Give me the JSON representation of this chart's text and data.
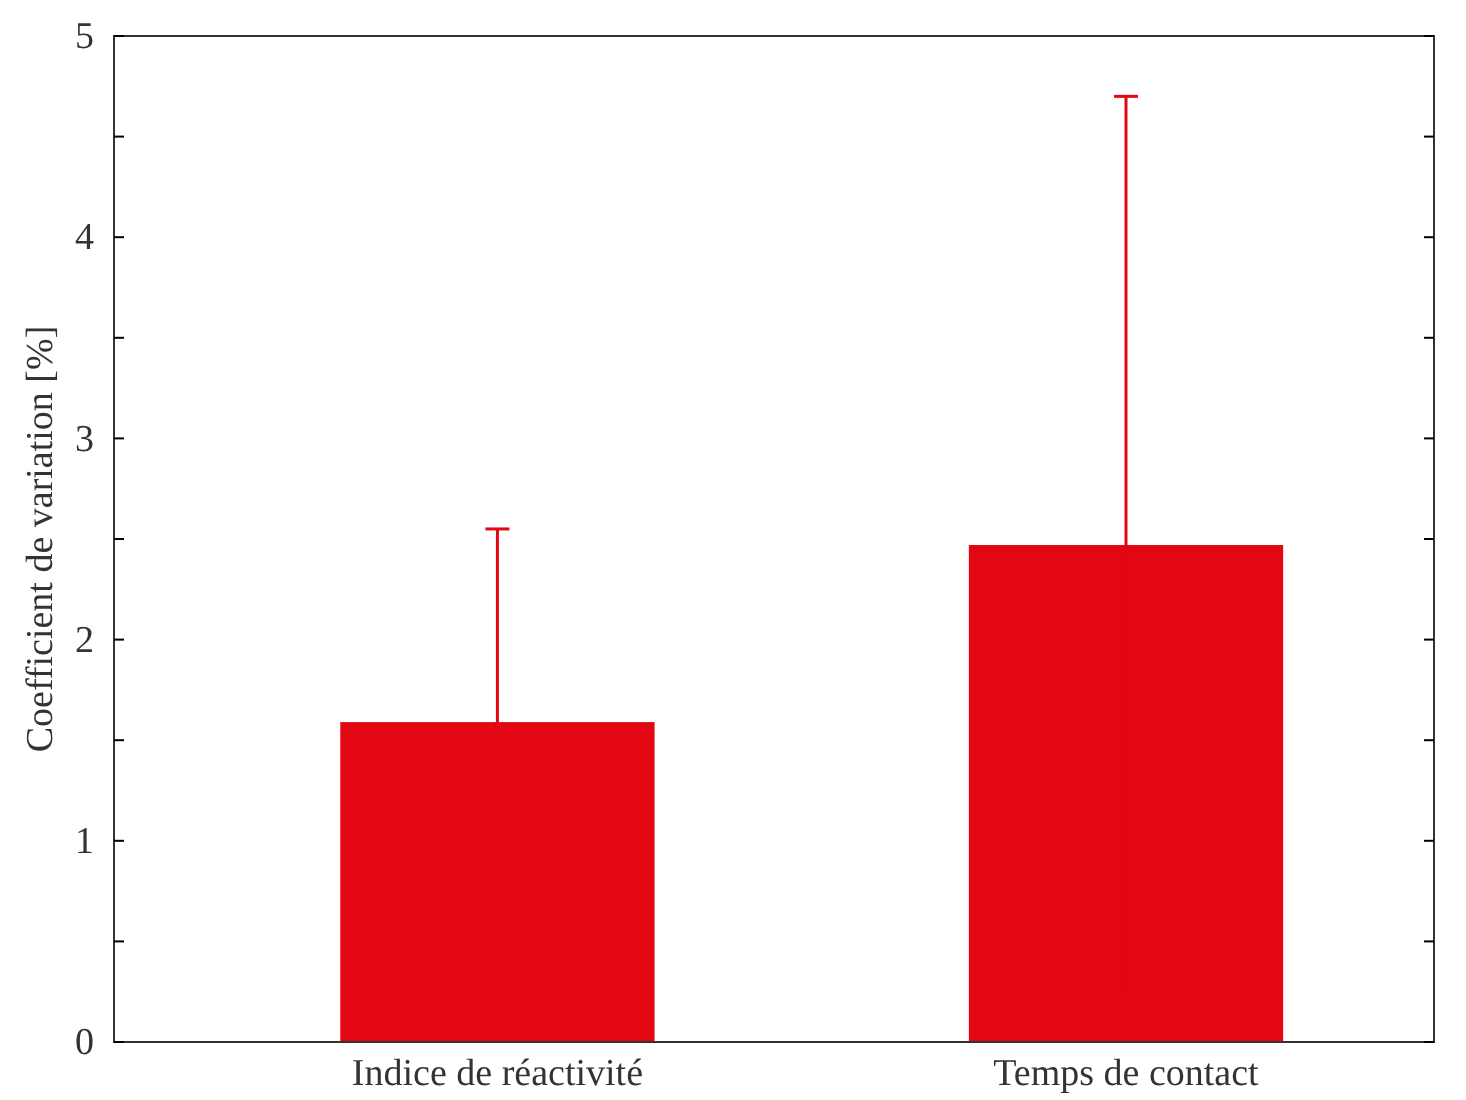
{
  "chart_data": {
    "type": "bar",
    "ylabel": "Coefficient de variation [%]",
    "categories": [
      "Indice de réactivité",
      "Temps de contact"
    ],
    "values": [
      1.59,
      2.47
    ],
    "errors": [
      0.96,
      2.23
    ],
    "color": "#e30613",
    "ylim": [
      0,
      5
    ],
    "yticks": [
      0,
      {
        "value": 0.5,
        "label": null
      },
      1,
      {
        "value": 1.5,
        "label": null
      },
      2,
      {
        "value": 2.5,
        "label": null
      },
      3,
      {
        "value": 3.5,
        "label": null
      },
      4,
      {
        "value": 4.5,
        "label": null
      },
      5
    ],
    "grid": false
  }
}
